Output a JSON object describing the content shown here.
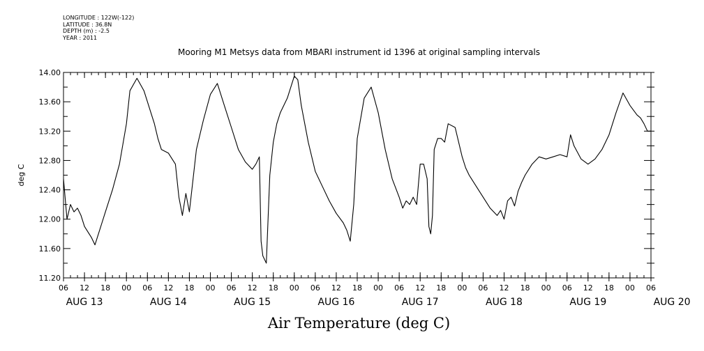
{
  "header": {
    "longitude": "LONGITUDE : 122W(-122)",
    "latitude": "LATITUDE : 36.8N",
    "depth": "DEPTH (m) : -2.5",
    "year": "YEAR : 2011"
  },
  "chart_data": {
    "type": "line",
    "title": "Mooring M1 Metsys data from MBARI instrument id 1396 at original sampling intervals",
    "xlabel": "Air Temperature (deg C)",
    "ylabel": "deg C",
    "ylim": [
      11.2,
      14.0
    ],
    "yticks": [
      "11.20",
      "11.60",
      "12.00",
      "12.40",
      "12.80",
      "13.20",
      "13.60",
      "14.00"
    ],
    "xlim_hours": [
      0,
      168
    ],
    "hour_ticks": [
      "06",
      "12",
      "18",
      "00",
      "06",
      "12",
      "18",
      "00",
      "06",
      "12",
      "18",
      "00",
      "06",
      "12",
      "18",
      "00",
      "06",
      "12",
      "18",
      "00",
      "06",
      "12",
      "18",
      "00",
      "06",
      "12",
      "18",
      "00",
      "06"
    ],
    "day_labels": [
      "AUG 13",
      "AUG 14",
      "AUG 15",
      "AUG 16",
      "AUG 17",
      "AUG 18",
      "AUG 19",
      "AUG 20"
    ],
    "grid": false,
    "series": [
      {
        "x": [
          "2011-08-13 06:00",
          "2011-08-13 07:00",
          "2011-08-13 08:00",
          "2011-08-13 09:00",
          "2011-08-13 10:00",
          "2011-08-13 11:00",
          "2011-08-13 12:00",
          "2011-08-13 14:00",
          "2011-08-13 15:00",
          "2011-08-13 16:00",
          "2011-08-13 17:00",
          "2011-08-13 18:00",
          "2011-08-13 20:00",
          "2011-08-13 22:00",
          "2011-08-14 00:00",
          "2011-08-14 01:00",
          "2011-08-14 03:00",
          "2011-08-14 05:00",
          "2011-08-14 06:00",
          "2011-08-14 07:00",
          "2011-08-14 08:00",
          "2011-08-14 09:00",
          "2011-08-14 10:00",
          "2011-08-14 12:00",
          "2011-08-14 14:00",
          "2011-08-14 15:00",
          "2011-08-14 16:00",
          "2011-08-14 17:00",
          "2011-08-14 18:00",
          "2011-08-14 20:00",
          "2011-08-14 22:00",
          "2011-08-15 00:00",
          "2011-08-15 02:00",
          "2011-08-15 04:00",
          "2011-08-15 06:00",
          "2011-08-15 08:00",
          "2011-08-15 10:00",
          "2011-08-15 12:00",
          "2011-08-15 13:00",
          "2011-08-15 14:00",
          "2011-08-15 14:30",
          "2011-08-15 15:00",
          "2011-08-15 16:00",
          "2011-08-15 17:00",
          "2011-08-15 18:00",
          "2011-08-15 19:00",
          "2011-08-15 20:00",
          "2011-08-15 22:00",
          "2011-08-16 00:00",
          "2011-08-16 01:00",
          "2011-08-16 02:00",
          "2011-08-16 04:00",
          "2011-08-16 06:00",
          "2011-08-16 08:00",
          "2011-08-16 10:00",
          "2011-08-16 12:00",
          "2011-08-16 14:00",
          "2011-08-16 15:00",
          "2011-08-16 16:00",
          "2011-08-16 17:00",
          "2011-08-16 18:00",
          "2011-08-16 20:00",
          "2011-08-16 22:00",
          "2011-08-17 00:00",
          "2011-08-17 02:00",
          "2011-08-17 04:00",
          "2011-08-17 06:00",
          "2011-08-17 07:00",
          "2011-08-17 08:00",
          "2011-08-17 09:00",
          "2011-08-17 10:00",
          "2011-08-17 11:00",
          "2011-08-17 12:00",
          "2011-08-17 13:00",
          "2011-08-17 14:00",
          "2011-08-17 14:30",
          "2011-08-17 15:00",
          "2011-08-17 15:30",
          "2011-08-17 16:00",
          "2011-08-17 17:00",
          "2011-08-17 18:00",
          "2011-08-17 19:00",
          "2011-08-17 20:00",
          "2011-08-17 22:00",
          "2011-08-18 00:00",
          "2011-08-18 01:00",
          "2011-08-18 02:00",
          "2011-08-18 04:00",
          "2011-08-18 06:00",
          "2011-08-18 08:00",
          "2011-08-18 10:00",
          "2011-08-18 11:00",
          "2011-08-18 12:00",
          "2011-08-18 13:00",
          "2011-08-18 14:00",
          "2011-08-18 15:00",
          "2011-08-18 16:00",
          "2011-08-18 17:00",
          "2011-08-18 18:00",
          "2011-08-18 20:00",
          "2011-08-18 22:00",
          "2011-08-19 00:00",
          "2011-08-19 02:00",
          "2011-08-19 04:00",
          "2011-08-19 06:00",
          "2011-08-19 07:00",
          "2011-08-19 08:00",
          "2011-08-19 10:00",
          "2011-08-19 12:00",
          "2011-08-19 14:00",
          "2011-08-19 16:00",
          "2011-08-19 18:00",
          "2011-08-19 20:00",
          "2011-08-19 22:00",
          "2011-08-20 00:00",
          "2011-08-20 02:00",
          "2011-08-20 03:00",
          "2011-08-20 04:00",
          "2011-08-20 05:00",
          "2011-08-20 06:00"
        ],
        "values": [
          12.55,
          12.0,
          12.2,
          12.1,
          12.15,
          12.05,
          11.9,
          11.75,
          11.65,
          11.8,
          11.95,
          12.1,
          12.4,
          12.75,
          13.3,
          13.75,
          13.92,
          13.75,
          13.6,
          13.45,
          13.3,
          13.1,
          12.95,
          12.9,
          12.75,
          12.3,
          12.05,
          12.35,
          12.1,
          12.95,
          13.35,
          13.7,
          13.85,
          13.55,
          13.25,
          12.95,
          12.78,
          12.68,
          12.75,
          12.85,
          11.7,
          11.5,
          11.4,
          12.6,
          13.05,
          13.3,
          13.45,
          13.65,
          13.95,
          13.9,
          13.55,
          13.05,
          12.65,
          12.45,
          12.25,
          12.08,
          11.95,
          11.85,
          11.7,
          12.2,
          13.1,
          13.65,
          13.8,
          13.45,
          12.95,
          12.55,
          12.3,
          12.15,
          12.25,
          12.2,
          12.3,
          12.2,
          12.75,
          12.75,
          12.55,
          11.9,
          11.8,
          12.05,
          12.95,
          13.1,
          13.1,
          13.05,
          13.3,
          13.25,
          12.85,
          12.7,
          12.6,
          12.45,
          12.3,
          12.15,
          12.05,
          12.12,
          12.0,
          12.25,
          12.3,
          12.18,
          12.38,
          12.5,
          12.6,
          12.75,
          12.85,
          12.82,
          12.85,
          12.88,
          12.85,
          13.15,
          13.0,
          12.82,
          12.75,
          12.82,
          12.95,
          13.15,
          13.45,
          13.72,
          13.55,
          13.42,
          13.38,
          13.3,
          13.2,
          13.2
        ]
      }
    ]
  }
}
